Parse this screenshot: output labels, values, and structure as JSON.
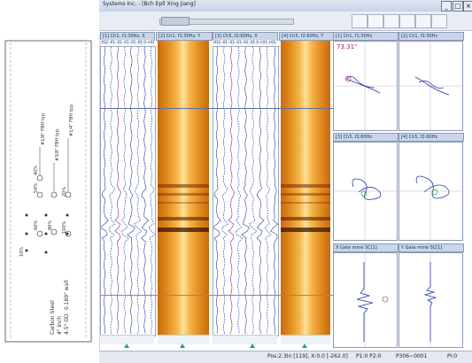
{
  "window": {
    "title": "Systems Inc. - [Bch Epll Xing Jiang]"
  },
  "drawing": {
    "material": "Carbon Steel",
    "size_inch": "4\" inch",
    "wall": "0.189\" wall",
    "od": "4.5\" OD",
    "fbh_labels": [
      "#1/8\" FBH typ.",
      "#3/8\" FBH typ.",
      "#1/4\" FBH typ."
    ],
    "pct_labels": [
      "40%",
      "54%",
      "60%",
      "100%",
      "20%",
      "80%",
      "10%"
    ]
  },
  "panels": {
    "strip1_title": "[1] Ch1, f1:30Hz, X",
    "strip2_title": "[2] Ch1, f1:30Hz, Y",
    "strip3_title": "[3] Ch5, f2:60Hz, X",
    "strip4_title": "[4] Ch5, f2:60Hz, Y",
    "scale_row": "-012 -01 -01 -01 -01 -01 0 +01 +01 +01",
    "lissa1_title": "[1] Ch1, f1:30Hz",
    "lissa1_value": "73.31\"",
    "lissa2_title": "[2] Ch1, f1:30Hz",
    "lissa3_title": "[3] Ch5, f2:60Hz",
    "lissa4_title": "[4] Ch5, f2:60Hz",
    "lissa5_title": "X Gate mme SC[1]",
    "lissa6_title": "Y Gate mme SC[1]"
  },
  "status": {
    "pos": "Pos:2.3In [119], X:0.0 [-262.0]",
    "p": "P1:0  P2:0",
    "pc": "P306~0001",
    "pct": "PI:0"
  },
  "colors": {
    "accent": "#2a5aa8",
    "strip": "#e08a1c"
  }
}
